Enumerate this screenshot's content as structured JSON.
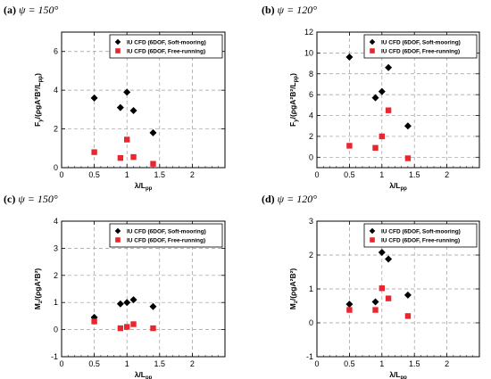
{
  "chart_data": [
    {
      "type": "scatter",
      "panel_label": "(a)",
      "psi_value": "ψ = 150°",
      "xlabel": "λ/L",
      "xlabel_sub": "pp",
      "ylabel": "F",
      "ylabel_sub": "y",
      "ylabel_rest": "/(ρgA²B²/L",
      "ylabel_sub2": "pp",
      "ylabel_end": ")",
      "xlim": [
        0,
        2.5
      ],
      "ylim": [
        0,
        7
      ],
      "xticks": [
        "0",
        "0.5",
        "1",
        "1.5",
        "2"
      ],
      "yticks": [
        "0",
        "2",
        "4",
        "6"
      ],
      "legend_position": "top-right",
      "grid": true,
      "series": [
        {
          "name": "IU CFD (6DOF, Soft-mooring)",
          "color": "#000000",
          "marker": "diamond",
          "x": [
            0.5,
            0.9,
            1.0,
            1.1,
            1.4
          ],
          "y": [
            3.6,
            3.1,
            3.9,
            2.95,
            1.8
          ]
        },
        {
          "name": "IU CFD (6DOF, Free-running)",
          "color": "#e8262d",
          "marker": "square",
          "x": [
            0.5,
            0.9,
            1.0,
            1.1,
            1.4
          ],
          "y": [
            0.8,
            0.5,
            1.45,
            0.55,
            0.2
          ]
        }
      ]
    },
    {
      "type": "scatter",
      "panel_label": "(b)",
      "psi_value": "ψ = 120°",
      "xlabel": "λ/L",
      "xlabel_sub": "pp",
      "ylabel": "F",
      "ylabel_sub": "y",
      "ylabel_rest": "/(ρgA²B²/L",
      "ylabel_sub2": "pp",
      "ylabel_end": ")",
      "xlim": [
        0,
        2.5
      ],
      "ylim": [
        -1,
        12
      ],
      "xticks": [
        "0",
        "0.5",
        "1",
        "1.5",
        "2"
      ],
      "yticks": [
        "0",
        "2",
        "4",
        "6",
        "8",
        "10",
        "12"
      ],
      "legend_position": "top-right",
      "grid": true,
      "series": [
        {
          "name": "IU CFD (6DOF, Soft-mooring)",
          "color": "#000000",
          "marker": "diamond",
          "x": [
            0.5,
            0.9,
            1.0,
            1.1,
            1.4
          ],
          "y": [
            9.6,
            5.7,
            6.3,
            8.6,
            3.0
          ]
        },
        {
          "name": "IU CFD (6DOF, Free-running)",
          "color": "#e8262d",
          "marker": "square",
          "x": [
            0.5,
            0.9,
            1.0,
            1.1,
            1.4
          ],
          "y": [
            1.1,
            0.9,
            2.0,
            4.5,
            -0.1
          ]
        }
      ]
    },
    {
      "type": "scatter",
      "panel_label": "(c)",
      "psi_value": "ψ = 150°",
      "xlabel": "λ/L",
      "xlabel_sub": "pp",
      "ylabel": "M",
      "ylabel_sub": "z",
      "ylabel_rest": "/(ρgA²B²",
      "ylabel_sub2": "",
      "ylabel_end": ")",
      "xlim": [
        0,
        2.5
      ],
      "ylim": [
        -1,
        4
      ],
      "xticks": [
        "0",
        "0.5",
        "1",
        "1.5",
        "2"
      ],
      "yticks": [
        "-1",
        "0",
        "1",
        "2",
        "3",
        "4"
      ],
      "legend_position": "top-right",
      "grid": true,
      "series": [
        {
          "name": "IU CFD (6DOF, Soft-mooring)",
          "color": "#000000",
          "marker": "diamond",
          "x": [
            0.5,
            0.9,
            1.0,
            1.1,
            1.4
          ],
          "y": [
            0.45,
            0.95,
            1.0,
            1.1,
            0.85
          ]
        },
        {
          "name": "IU CFD (6DOF, Free-running)",
          "color": "#e8262d",
          "marker": "square",
          "x": [
            0.5,
            0.9,
            1.0,
            1.1,
            1.4
          ],
          "y": [
            0.3,
            0.05,
            0.1,
            0.2,
            0.05
          ]
        }
      ]
    },
    {
      "type": "scatter",
      "panel_label": "(d)",
      "psi_value": "ψ = 120°",
      "xlabel": "λ/L",
      "xlabel_sub": "pp",
      "ylabel": "M",
      "ylabel_sub": "z",
      "ylabel_rest": "/(ρgA²B²",
      "ylabel_sub2": "",
      "ylabel_end": ")",
      "xlim": [
        0,
        2.5
      ],
      "ylim": [
        -1,
        3
      ],
      "xticks": [
        "0",
        "0.5",
        "1",
        "1.5",
        "2"
      ],
      "yticks": [
        "-1",
        "0",
        "1",
        "2",
        "3"
      ],
      "legend_position": "top-right",
      "grid": true,
      "series": [
        {
          "name": "IU CFD (6DOF, Soft-mooring)",
          "color": "#000000",
          "marker": "diamond",
          "x": [
            0.5,
            0.9,
            1.0,
            1.1,
            1.4
          ],
          "y": [
            0.55,
            0.62,
            2.08,
            1.88,
            0.82
          ]
        },
        {
          "name": "IU CFD (6DOF, Free-running)",
          "color": "#e8262d",
          "marker": "square",
          "x": [
            0.5,
            0.9,
            1.0,
            1.1,
            1.4
          ],
          "y": [
            0.38,
            0.38,
            1.02,
            0.72,
            0.2
          ]
        }
      ]
    }
  ]
}
